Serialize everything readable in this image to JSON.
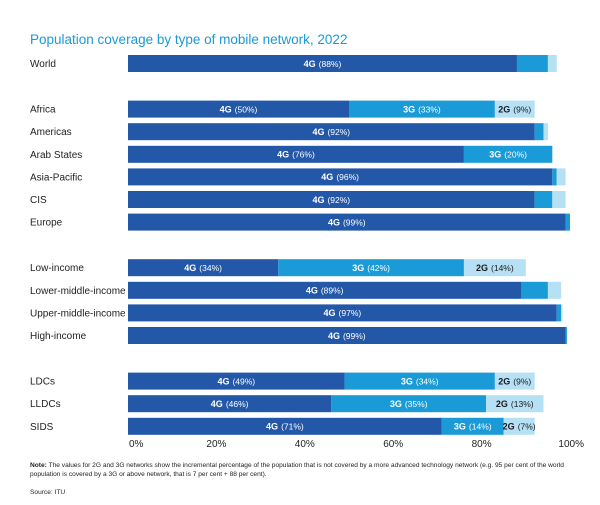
{
  "chart_data": {
    "type": "bar",
    "orientation": "horizontal",
    "stacked": true,
    "title": "Population coverage by type of mobile network, 2022",
    "xlabel": "",
    "ylabel": "",
    "xlim": [
      0,
      100
    ],
    "x_ticks": [
      "0%",
      "20%",
      "40%",
      "60%",
      "80%",
      "100%"
    ],
    "grid": false,
    "legend": "none (segments labelled inline)",
    "series_names": [
      "4G",
      "3G",
      "2G"
    ],
    "colors": {
      "4G": "#2358a8",
      "3G": "#1a9ad6",
      "2G": "#b6e0f4"
    },
    "groups": [
      {
        "name": "world",
        "rows": [
          {
            "category": "World",
            "4G": 88,
            "3G": 7,
            "2G": 2,
            "labels": {
              "4G": "(88%)"
            }
          }
        ]
      },
      {
        "name": "regions",
        "rows": [
          {
            "category": "Africa",
            "4G": 50,
            "3G": 33,
            "2G": 9,
            "labels": {
              "4G": "(50%)",
              "3G": "(33%)",
              "2G": "(9%)"
            }
          },
          {
            "category": "Americas",
            "4G": 92,
            "3G": 2,
            "2G": 1,
            "labels": {
              "4G": "(92%)"
            }
          },
          {
            "category": "Arab States",
            "4G": 76,
            "3G": 20,
            "2G": 0,
            "labels": {
              "4G": "(76%)",
              "3G": "(20%)"
            }
          },
          {
            "category": "Asia-Pacific",
            "4G": 96,
            "3G": 1,
            "2G": 2,
            "labels": {
              "4G": "(96%)"
            }
          },
          {
            "category": "CIS",
            "4G": 92,
            "3G": 4,
            "2G": 3,
            "labels": {
              "4G": "(92%)"
            }
          },
          {
            "category": "Europe",
            "4G": 99,
            "3G": 1,
            "2G": 0,
            "labels": {
              "4G": "(99%)"
            }
          }
        ]
      },
      {
        "name": "income",
        "rows": [
          {
            "category": "Low-income",
            "4G": 34,
            "3G": 42,
            "2G": 14,
            "labels": {
              "4G": "(34%)",
              "3G": "(42%)",
              "2G": "(14%)"
            }
          },
          {
            "category": "Lower-middle-income",
            "4G": 89,
            "3G": 6,
            "2G": 3,
            "labels": {
              "4G": "(89%)"
            }
          },
          {
            "category": "Upper-middle-income",
            "4G": 97,
            "3G": 1,
            "2G": 0.3,
            "labels": {
              "4G": "(97%)"
            }
          },
          {
            "category": "High-income",
            "4G": 99,
            "3G": 0.3,
            "2G": 0,
            "labels": {
              "4G": "(99%)"
            }
          }
        ]
      },
      {
        "name": "special",
        "rows": [
          {
            "category": "LDCs",
            "4G": 49,
            "3G": 34,
            "2G": 9,
            "labels": {
              "4G": "(49%)",
              "3G": "(34%)",
              "2G": "(9%)"
            }
          },
          {
            "category": "LLDCs",
            "4G": 46,
            "3G": 35,
            "2G": 13,
            "labels": {
              "4G": "(46%)",
              "3G": "(35%)",
              "2G": "(13%)"
            }
          },
          {
            "category": "SIDS",
            "4G": 71,
            "3G": 14,
            "2G": 7,
            "labels": {
              "4G": "(71%)",
              "3G": "(14%)",
              "2G": "(7%)"
            }
          }
        ]
      }
    ]
  },
  "footer": {
    "note_label": "Note:",
    "note_text": " The values for 2G and 3G networks show the incremental percentage of the population that is not covered by a more advanced technology network (e.g. 95 per cent of the world population is covered by a 3G or above network, that is 7 per cent + 88 per cent).",
    "source": "Source: ITU"
  }
}
